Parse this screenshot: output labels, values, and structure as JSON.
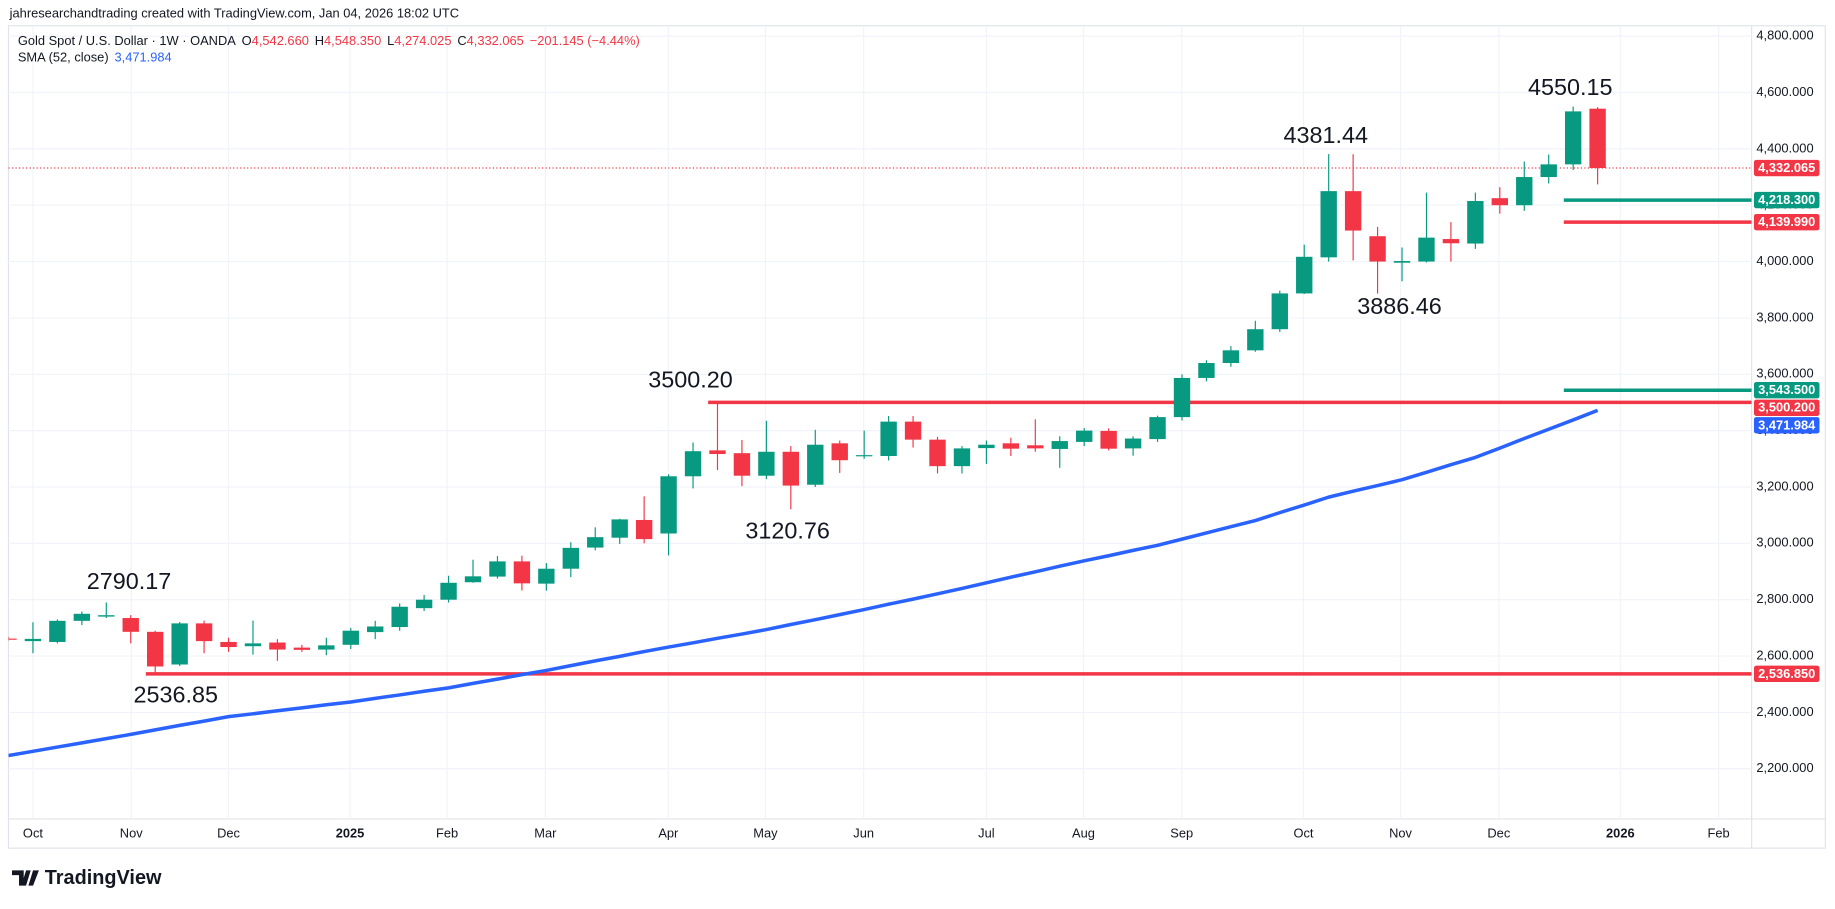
{
  "header": {
    "text": "jahresearchandtrading created with TradingView.com, Jan 04, 2026 18:02 UTC"
  },
  "legend": {
    "symbol": "Gold Spot / U.S. Dollar · 1W · OANDA",
    "ohlc": [
      {
        "key": "O",
        "value": "4,542.660"
      },
      {
        "key": "H",
        "value": "4,548.350"
      },
      {
        "key": "L",
        "value": "4,274.025"
      },
      {
        "key": "C",
        "value": "4,332.065"
      }
    ],
    "change": "−201.145 (−4.44%)",
    "indicator_value": "3,471.984"
  },
  "footer": {
    "brand": "TradingView"
  },
  "chart_data": {
    "type": "candlestick",
    "up_color": "#089981",
    "down_color": "#f23645",
    "candles": {
      "open": [
        2662,
        2653,
        2650,
        2725,
        2740,
        2735,
        2686,
        2570,
        2716,
        2650,
        2635,
        2648,
        2630,
        2623,
        2640,
        2685,
        2703,
        2770,
        2800,
        2862,
        2882,
        2936,
        2857,
        2910,
        2985,
        3020,
        3083,
        3035,
        3238,
        3330,
        3320,
        3240,
        3325,
        3208,
        3355,
        3310,
        3310,
        3432,
        3368,
        3274,
        3338,
        3355,
        3348,
        3335,
        3360,
        3399,
        3337,
        3370,
        3448,
        3587,
        3640,
        3685,
        3760,
        3887,
        4015,
        4250,
        4090,
        3996,
        4000,
        4080,
        4064,
        4225,
        4200,
        4300,
        4345,
        4542.66
      ],
      "high": [
        2668,
        2720,
        2730,
        2758,
        2790.17,
        2745,
        2690,
        2721,
        2726,
        2665,
        2726,
        2660,
        2640,
        2665,
        2700,
        2725,
        2787,
        2817,
        2885,
        2942,
        2955,
        2956,
        2930,
        3004,
        3057,
        3087,
        3167,
        3245,
        3358,
        3500.2,
        3367,
        3435,
        3345,
        3403,
        3365,
        3400,
        3452,
        3452,
        3378,
        3345,
        3365,
        3375,
        3440,
        3380,
        3409,
        3408,
        3380,
        3453,
        3600,
        3650,
        3700,
        3790,
        3897,
        4060,
        4381.44,
        4381,
        4123,
        4050,
        4245,
        4140,
        4245,
        4264,
        4355,
        4380,
        4550.15,
        4548.35
      ],
      "low": [
        2655,
        2610,
        2645,
        2710,
        2735,
        2645,
        2536.85,
        2565,
        2610,
        2615,
        2605,
        2583,
        2615,
        2603,
        2625,
        2660,
        2690,
        2760,
        2790,
        2860,
        2875,
        2833,
        2832,
        2880,
        2975,
        2998,
        3000,
        2957,
        3195,
        3260,
        3203,
        3228,
        3120.76,
        3200,
        3250,
        3300,
        3294,
        3340,
        3248,
        3248,
        3282,
        3310,
        3325,
        3268,
        3345,
        3330,
        3311,
        3360,
        3436,
        3575,
        3627,
        3680,
        3750,
        3885,
        4000,
        4004,
        3886.46,
        3930,
        3997,
        4000,
        4045,
        4170,
        4180,
        4277,
        4325,
        4274.025
      ],
      "close": [
        2658,
        2661,
        2725,
        2750,
        2745,
        2686,
        2563,
        2716,
        2653,
        2632,
        2645,
        2623,
        2622,
        2638,
        2690,
        2705,
        2775,
        2800,
        2860,
        2883,
        2936,
        2858,
        2910,
        2984,
        3022,
        3085,
        3015,
        3238,
        3327,
        3317,
        3240,
        3325,
        3205,
        3350,
        3295,
        3313,
        3432,
        3368,
        3274,
        3337,
        3350,
        3336,
        3337,
        3363,
        3400,
        3336,
        3372,
        3448,
        3587,
        3640,
        3685,
        3760,
        3887,
        4017,
        4250,
        4110,
        4000,
        4002,
        4085,
        4065,
        4215,
        4200,
        4300,
        4345,
        4533,
        4332.065
      ]
    },
    "series": [
      {
        "name": "SMA (52, close)",
        "color": "#2962ff",
        "values": [
          2247,
          2262,
          2277,
          2292,
          2307,
          2322,
          2338,
          2354,
          2369,
          2385,
          2395,
          2406,
          2416,
          2427,
          2437,
          2450,
          2462,
          2475,
          2487,
          2503,
          2518,
          2534,
          2549,
          2566,
          2583,
          2599,
          2616,
          2632,
          2647,
          2663,
          2678,
          2694,
          2712,
          2729,
          2747,
          2765,
          2784,
          2802,
          2821,
          2840,
          2860,
          2880,
          2899,
          2919,
          2938,
          2956,
          2975,
          2993,
          3015,
          3037,
          3059,
          3081,
          3109,
          3136,
          3164,
          3185,
          3205,
          3226,
          3252,
          3279,
          3305,
          3338,
          3372,
          3405,
          3438,
          3471.984
        ]
      }
    ],
    "levels": [
      {
        "value": 4332.065,
        "label": "4,332.065",
        "color": "#f23645"
      },
      {
        "value": 4218.3,
        "label": "4,218.300",
        "color": "#089981"
      },
      {
        "value": 4139.99,
        "label": "4,139.990",
        "color": "#f23645"
      },
      {
        "value": 3543.5,
        "label": "3,543.500",
        "color": "#089981"
      },
      {
        "value": 3500.2,
        "label": "3,500.200",
        "color": "#f23645"
      },
      {
        "value": 3471.984,
        "label": "3,471.984",
        "color": "#2962ff"
      },
      {
        "value": 2536.85,
        "label": "2,536.850",
        "color": "#f23645"
      }
    ],
    "annotations": [
      "2790.17",
      "2536.85",
      "3500.20",
      "3120.76",
      "4381.44",
      "3886.46",
      "4550.15"
    ],
    "ylim": [
      2022,
      4837
    ],
    "yticks": [
      {
        "value": 2200,
        "label": "2,200.000"
      },
      {
        "value": 2400,
        "label": "2,400.000"
      },
      {
        "value": 2600,
        "label": "2,600.000"
      },
      {
        "value": 2800,
        "label": "2,800.000"
      },
      {
        "value": 3000,
        "label": "3,000.000"
      },
      {
        "value": 3200,
        "label": "3,200.000"
      },
      {
        "value": 3400,
        "label": "3,400.000"
      },
      {
        "value": 3600,
        "label": "3,600.000"
      },
      {
        "value": 3800,
        "label": "3,800.000"
      },
      {
        "value": 4000,
        "label": "4,000.000"
      },
      {
        "value": 4200,
        "label": "4,200.000"
      },
      {
        "value": 4400,
        "label": "4,400.000"
      },
      {
        "value": 4600,
        "label": "4,600.000"
      },
      {
        "value": 4800,
        "label": "4,800.000"
      }
    ],
    "xlim": [
      0,
      71.3
    ],
    "xticks": [
      {
        "value": 1.0,
        "label": "Oct"
      },
      {
        "value": 5.02,
        "label": "Nov"
      },
      {
        "value": 9.0,
        "label": "Dec"
      },
      {
        "value": 13.97,
        "label": "2025"
      },
      {
        "value": 17.94,
        "label": "Feb"
      },
      {
        "value": 21.96,
        "label": "Mar"
      },
      {
        "value": 26.99,
        "label": "Apr"
      },
      {
        "value": 30.96,
        "label": "May"
      },
      {
        "value": 34.98,
        "label": "Jun"
      },
      {
        "value": 40.0,
        "label": "Jul"
      },
      {
        "value": 43.97,
        "label": "Aug"
      },
      {
        "value": 47.99,
        "label": "Sep"
      },
      {
        "value": 52.97,
        "label": "Oct"
      },
      {
        "value": 56.94,
        "label": "Nov"
      },
      {
        "value": 60.96,
        "label": "Dec"
      },
      {
        "value": 65.93,
        "label": "2026"
      },
      {
        "value": 69.95,
        "label": "Feb"
      }
    ],
    "grid": true
  }
}
